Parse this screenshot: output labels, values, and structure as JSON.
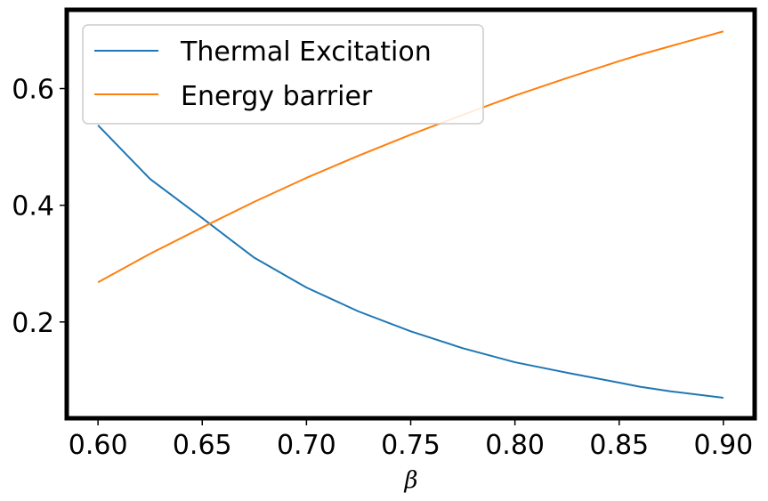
{
  "chart_data": {
    "type": "line",
    "title": "",
    "xlabel": "β",
    "ylabel": "",
    "xlim": [
      0.585,
      0.915
    ],
    "ylim": [
      0.035,
      0.735
    ],
    "xticks": [
      0.6,
      0.65,
      0.7,
      0.75,
      0.8,
      0.85,
      0.9
    ],
    "xtick_labels": [
      "0.60",
      "0.65",
      "0.70",
      "0.75",
      "0.80",
      "0.85",
      "0.90"
    ],
    "yticks": [
      0.2,
      0.4,
      0.6
    ],
    "ytick_labels": [
      "0.2",
      "0.4",
      "0.6"
    ],
    "grid": false,
    "legend_position": "upper-left",
    "x": [
      0.6,
      0.625,
      0.65,
      0.675,
      0.7,
      0.725,
      0.75,
      0.775,
      0.8,
      0.825,
      0.85,
      0.86,
      0.875,
      0.9
    ],
    "series": [
      {
        "name": "Thermal Excitation",
        "color": "#1f77b4",
        "values": [
          0.537,
          0.445,
          0.378,
          0.31,
          0.259,
          0.218,
          0.184,
          0.155,
          0.131,
          0.113,
          0.096,
          0.089,
          0.081,
          0.07
        ]
      },
      {
        "name": "Energy barrier",
        "color": "#ff7f0e",
        "values": [
          0.268,
          0.317,
          0.362,
          0.406,
          0.447,
          0.485,
          0.521,
          0.555,
          0.588,
          0.618,
          0.647,
          0.658,
          0.673,
          0.698
        ]
      }
    ]
  }
}
